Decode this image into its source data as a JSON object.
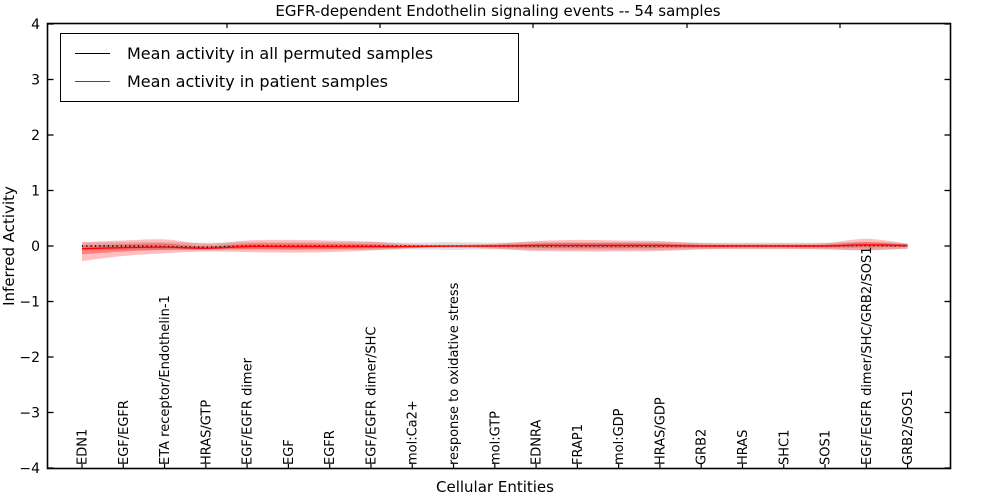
{
  "title": "EGFR-dependent Endothelin signaling events -- 54 samples",
  "axes": {
    "xlabel": "Cellular Entities",
    "ylabel": "Inferred Activity",
    "yticks": [
      4,
      3,
      2,
      1,
      0,
      -1,
      -2,
      -3,
      -4
    ],
    "ytick_labels": [
      "4",
      "3",
      "2",
      "1",
      "0",
      "−1",
      "−2",
      "−3",
      "−4"
    ],
    "ylim": [
      -4,
      4
    ]
  },
  "legend": {
    "items": [
      {
        "label": "Mean activity in all permuted samples",
        "color": "#000000"
      },
      {
        "label": "Mean activity in patient samples",
        "color": "#ff0000"
      }
    ]
  },
  "chart_data": {
    "type": "line",
    "title": "EGFR-dependent Endothelin signaling events -- 54 samples",
    "xlabel": "Cellular Entities",
    "ylabel": "Inferred Activity",
    "ylim": [
      -4,
      4
    ],
    "grid": false,
    "legend_position": "upper left",
    "categories": [
      "EDN1",
      "EGF/EGFR",
      "ETA receptor/Endothelin-1",
      "HRAS/GTP",
      "EGF/EGFR dimer",
      "EGF",
      "EGFR",
      "EGF/EGFR dimer/SHC",
      "mol:Ca2+",
      "response to oxidative stress",
      "mol:GTP",
      "EDNRA",
      "FRAP1",
      "mol:GDP",
      "HRAS/GDP",
      "GRB2",
      "HRAS",
      "SHC1",
      "SOS1",
      "EGF/EGFR dimer/SHC/GRB2/SOS1",
      "GRB2/SOS1"
    ],
    "series": [
      {
        "name": "Mean activity in all permuted samples",
        "color": "#000000",
        "style": "dotted",
        "values": [
          0.0,
          0.0,
          -0.01,
          -0.02,
          0.0,
          0.0,
          0.0,
          0.0,
          0.0,
          0.0,
          0.0,
          0.0,
          0.0,
          0.0,
          0.0,
          0.0,
          0.0,
          0.0,
          0.0,
          0.01,
          0.0
        ]
      },
      {
        "name": "Mean activity in patient samples",
        "color": "#ff0000",
        "style": "solid",
        "values": [
          -0.05,
          -0.03,
          -0.02,
          -0.04,
          -0.01,
          -0.01,
          -0.01,
          -0.01,
          -0.01,
          0.0,
          0.0,
          0.01,
          0.01,
          0.01,
          0.01,
          0.0,
          0.0,
          0.0,
          0.0,
          0.02,
          0.01
        ]
      }
    ],
    "bands": [
      {
        "name": "permuted-samples-range",
        "fill": "rgba(0,0,0,0.13)",
        "upper": [
          0.06,
          0.07,
          0.07,
          0.06,
          0.07,
          0.07,
          0.07,
          0.07,
          0.06,
          0.07,
          0.06,
          0.07,
          0.07,
          0.07,
          0.07,
          0.06,
          0.06,
          0.06,
          0.06,
          0.07,
          0.05
        ],
        "lower": [
          -0.08,
          -0.07,
          -0.07,
          -0.06,
          -0.07,
          -0.07,
          -0.07,
          -0.07,
          -0.06,
          -0.07,
          -0.06,
          -0.07,
          -0.07,
          -0.07,
          -0.07,
          -0.06,
          -0.06,
          -0.06,
          -0.06,
          -0.07,
          -0.05
        ]
      },
      {
        "name": "patient-samples-range-outer",
        "fill": "rgba(255,0,0,0.25)",
        "upper": [
          0.07,
          0.1,
          0.12,
          0.04,
          0.1,
          0.11,
          0.1,
          0.08,
          0.03,
          0.02,
          0.04,
          0.09,
          0.11,
          0.1,
          0.09,
          0.05,
          0.04,
          0.04,
          0.05,
          0.13,
          0.04
        ],
        "lower": [
          -0.27,
          -0.18,
          -0.13,
          -0.1,
          -0.11,
          -0.12,
          -0.11,
          -0.08,
          -0.04,
          -0.03,
          -0.05,
          -0.09,
          -0.1,
          -0.1,
          -0.09,
          -0.06,
          -0.05,
          -0.05,
          -0.06,
          -0.08,
          -0.05
        ]
      },
      {
        "name": "patient-samples-range-inner",
        "fill": "rgba(255,0,0,0.32)",
        "upper": [
          0.004,
          0.029,
          0.043,
          -0.004,
          0.04,
          0.044,
          0.04,
          0.031,
          0.008,
          0.009,
          0.018,
          0.046,
          0.055,
          0.051,
          0.046,
          0.023,
          0.018,
          0.018,
          0.023,
          0.07,
          0.024
        ],
        "lower": [
          -0.149,
          -0.098,
          -0.07,
          -0.067,
          -0.055,
          -0.06,
          -0.055,
          -0.042,
          -0.024,
          -0.014,
          -0.023,
          -0.035,
          -0.04,
          -0.04,
          -0.035,
          -0.027,
          -0.023,
          -0.023,
          -0.027,
          -0.025,
          -0.017
        ]
      }
    ]
  }
}
